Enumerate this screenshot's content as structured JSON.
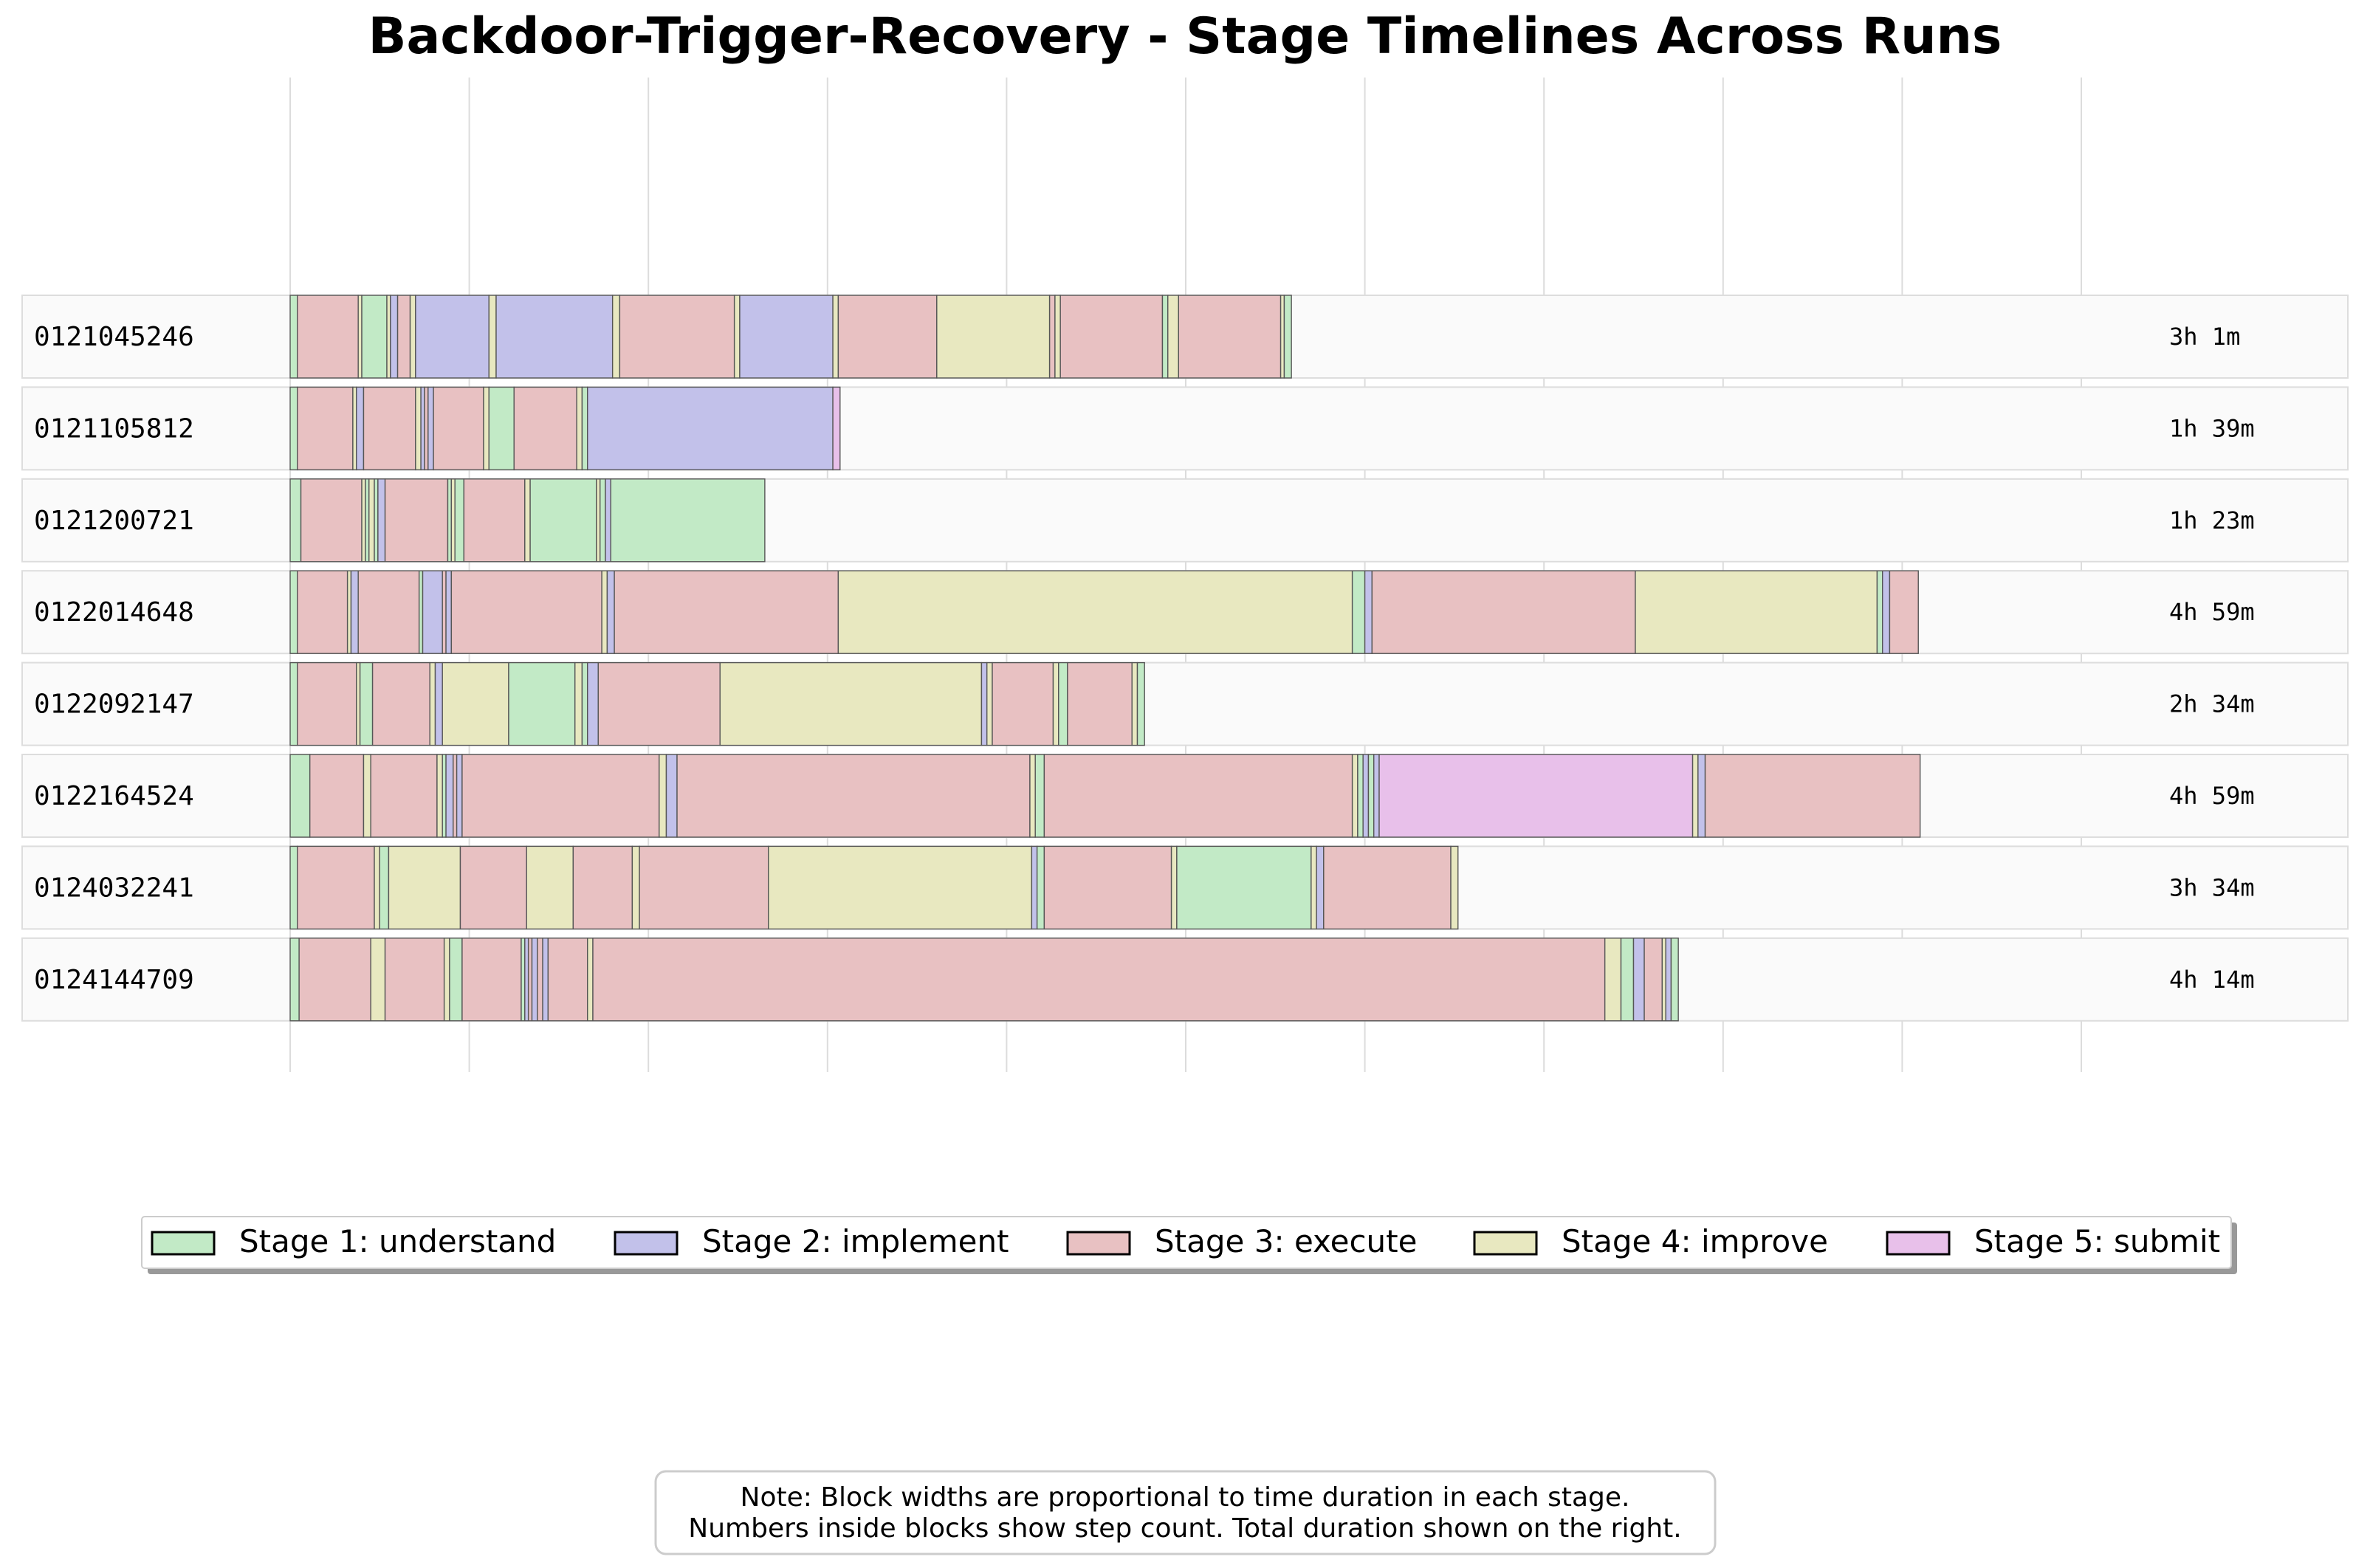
{
  "chart_data": {
    "type": "bar",
    "orientation": "horizontal-stacked-timeline",
    "title": "Backdoor-Trigger-Recovery - Stage Timelines Across Runs",
    "x_range": [
      0,
      10
    ],
    "stages": [
      {
        "id": 1,
        "label": "Stage 1: understand",
        "color": "#c2eac6"
      },
      {
        "id": 2,
        "label": "Stage 2: implement",
        "color": "#c2c1ea"
      },
      {
        "id": 3,
        "label": "Stage 3: execute",
        "color": "#e8c1c2"
      },
      {
        "id": 4,
        "label": "Stage 4: improve",
        "color": "#e8e8c0"
      },
      {
        "id": 5,
        "label": "Stage 5: submit",
        "color": "#e8c0ea"
      }
    ],
    "legend_placement": "bottom-center",
    "grid": true,
    "runs": [
      {
        "name": "0121045246",
        "duration": "3h 1m",
        "segments": [
          [
            1,
            0.04
          ],
          [
            3,
            0.34
          ],
          [
            4,
            0.02
          ],
          [
            1,
            0.14
          ],
          [
            4,
            0.02
          ],
          [
            2,
            0.04
          ],
          [
            3,
            0.07
          ],
          [
            4,
            0.03
          ],
          [
            2,
            0.41
          ],
          [
            4,
            0.04
          ],
          [
            2,
            0.65
          ],
          [
            4,
            0.04
          ],
          [
            3,
            0.64
          ],
          [
            4,
            0.03
          ],
          [
            2,
            0.52
          ],
          [
            4,
            0.03
          ],
          [
            3,
            0.55
          ],
          [
            4,
            0.63
          ],
          [
            3,
            0.03
          ],
          [
            4,
            0.03
          ],
          [
            3,
            0.57
          ],
          [
            1,
            0.03
          ],
          [
            4,
            0.06
          ],
          [
            3,
            0.57
          ],
          [
            4,
            0.02
          ],
          [
            1,
            0.04
          ]
        ]
      },
      {
        "name": "0121105812",
        "duration": "1h 39m",
        "segments": [
          [
            1,
            0.04
          ],
          [
            3,
            0.31
          ],
          [
            4,
            0.02
          ],
          [
            2,
            0.04
          ],
          [
            3,
            0.29
          ],
          [
            4,
            0.03
          ],
          [
            2,
            0.02
          ],
          [
            3,
            0.02
          ],
          [
            2,
            0.03
          ],
          [
            3,
            0.28
          ],
          [
            4,
            0.03
          ],
          [
            1,
            0.14
          ],
          [
            3,
            0.35
          ],
          [
            4,
            0.03
          ],
          [
            1,
            0.03
          ],
          [
            2,
            1.37
          ],
          [
            5,
            0.04
          ]
        ]
      },
      {
        "name": "0121200721",
        "duration": "1h 23m",
        "segments": [
          [
            1,
            0.06
          ],
          [
            3,
            0.34
          ],
          [
            4,
            0.02
          ],
          [
            1,
            0.02
          ],
          [
            4,
            0.03
          ],
          [
            1,
            0.02
          ],
          [
            2,
            0.04
          ],
          [
            3,
            0.35
          ],
          [
            1,
            0.02
          ],
          [
            4,
            0.02
          ],
          [
            1,
            0.05
          ],
          [
            3,
            0.34
          ],
          [
            4,
            0.03
          ],
          [
            1,
            0.37
          ],
          [
            4,
            0.02
          ],
          [
            1,
            0.03
          ],
          [
            2,
            0.03
          ],
          [
            1,
            0.86
          ]
        ]
      },
      {
        "name": "0122014648",
        "duration": "4h 59m",
        "segments": [
          [
            1,
            0.04
          ],
          [
            3,
            0.28
          ],
          [
            4,
            0.02
          ],
          [
            2,
            0.04
          ],
          [
            3,
            0.34
          ],
          [
            1,
            0.02
          ],
          [
            2,
            0.11
          ],
          [
            3,
            0.02
          ],
          [
            2,
            0.03
          ],
          [
            3,
            0.84
          ],
          [
            4,
            0.03
          ],
          [
            2,
            0.04
          ],
          [
            3,
            1.25
          ],
          [
            4,
            2.87
          ],
          [
            1,
            0.07
          ],
          [
            2,
            0.04
          ],
          [
            3,
            1.47
          ],
          [
            4,
            1.35
          ],
          [
            1,
            0.03
          ],
          [
            2,
            0.04
          ],
          [
            3,
            0.16
          ]
        ]
      },
      {
        "name": "0122092147",
        "duration": "2h 34m",
        "segments": [
          [
            1,
            0.04
          ],
          [
            3,
            0.33
          ],
          [
            4,
            0.02
          ],
          [
            1,
            0.07
          ],
          [
            3,
            0.32
          ],
          [
            4,
            0.03
          ],
          [
            2,
            0.04
          ],
          [
            4,
            0.37
          ],
          [
            1,
            0.37
          ],
          [
            4,
            0.04
          ],
          [
            1,
            0.03
          ],
          [
            2,
            0.06
          ],
          [
            3,
            0.68
          ],
          [
            4,
            1.46
          ],
          [
            2,
            0.03
          ],
          [
            4,
            0.03
          ],
          [
            3,
            0.34
          ],
          [
            4,
            0.03
          ],
          [
            1,
            0.05
          ],
          [
            3,
            0.36
          ],
          [
            4,
            0.03
          ],
          [
            1,
            0.04
          ]
        ]
      },
      {
        "name": "0122164524",
        "duration": "4h 59m",
        "segments": [
          [
            1,
            0.11
          ],
          [
            3,
            0.3
          ],
          [
            4,
            0.04
          ],
          [
            3,
            0.37
          ],
          [
            4,
            0.03
          ],
          [
            1,
            0.02
          ],
          [
            2,
            0.04
          ],
          [
            3,
            0.02
          ],
          [
            2,
            0.03
          ],
          [
            3,
            1.1
          ],
          [
            4,
            0.04
          ],
          [
            2,
            0.06
          ],
          [
            3,
            1.97
          ],
          [
            4,
            0.03
          ],
          [
            1,
            0.05
          ],
          [
            3,
            1.72
          ],
          [
            4,
            0.03
          ],
          [
            1,
            0.03
          ],
          [
            2,
            0.03
          ],
          [
            1,
            0.03
          ],
          [
            2,
            0.03
          ],
          [
            5,
            1.75
          ],
          [
            4,
            0.03
          ],
          [
            2,
            0.04
          ],
          [
            3,
            1.2
          ]
        ]
      },
      {
        "name": "0124032241",
        "duration": "3h 34m",
        "segments": [
          [
            1,
            0.04
          ],
          [
            3,
            0.43
          ],
          [
            4,
            0.03
          ],
          [
            1,
            0.05
          ],
          [
            4,
            0.4
          ],
          [
            3,
            0.37
          ],
          [
            4,
            0.26
          ],
          [
            3,
            0.33
          ],
          [
            4,
            0.04
          ],
          [
            3,
            0.72
          ],
          [
            4,
            1.47
          ],
          [
            2,
            0.03
          ],
          [
            1,
            0.04
          ],
          [
            3,
            0.71
          ],
          [
            4,
            0.03
          ],
          [
            1,
            0.75
          ],
          [
            4,
            0.03
          ],
          [
            2,
            0.04
          ],
          [
            3,
            0.71
          ],
          [
            4,
            0.04
          ]
        ]
      },
      {
        "name": "0124144709",
        "duration": "4h 14m",
        "segments": [
          [
            1,
            0.05
          ],
          [
            3,
            0.4
          ],
          [
            4,
            0.08
          ],
          [
            3,
            0.33
          ],
          [
            4,
            0.03
          ],
          [
            1,
            0.07
          ],
          [
            3,
            0.33
          ],
          [
            1,
            0.02
          ],
          [
            2,
            0.02
          ],
          [
            3,
            0.02
          ],
          [
            2,
            0.03
          ],
          [
            3,
            0.03
          ],
          [
            2,
            0.03
          ],
          [
            3,
            0.22
          ],
          [
            4,
            0.03
          ],
          [
            3,
            5.65
          ],
          [
            4,
            0.09
          ],
          [
            1,
            0.07
          ],
          [
            2,
            0.06
          ],
          [
            3,
            0.1
          ],
          [
            4,
            0.02
          ],
          [
            2,
            0.03
          ],
          [
            1,
            0.04
          ]
        ]
      }
    ],
    "note": [
      "Note: Block widths are proportional to time duration in each stage.",
      "Numbers inside blocks show step count. Total duration shown on the right."
    ]
  }
}
